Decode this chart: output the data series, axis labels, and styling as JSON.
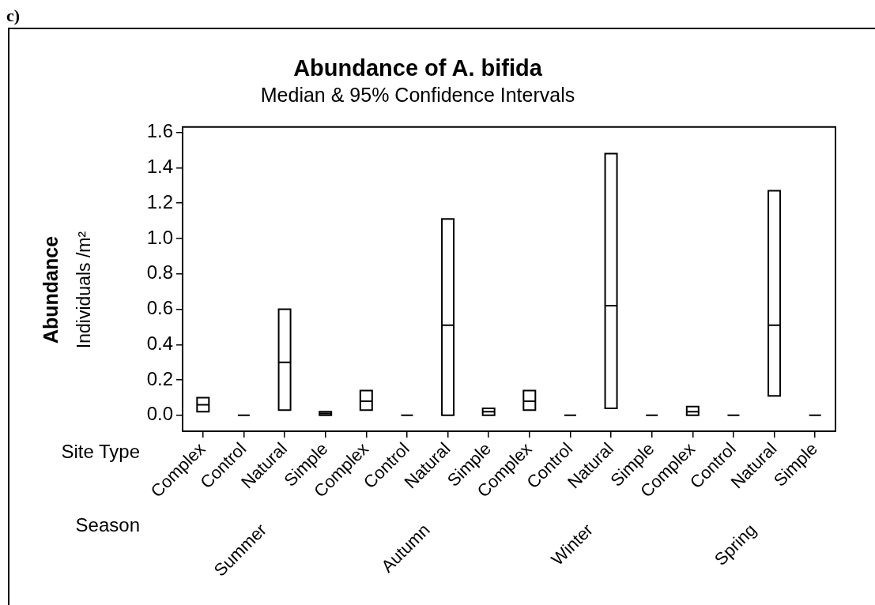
{
  "chart_data": {
    "type": "box",
    "title": "Abundance of A. bifida",
    "subtitle": "Median & 95% Confidence Intervals",
    "ylabel": "Abundance\nIndividuals /m²",
    "categories": [
      "Complex",
      "Control",
      "Natural",
      "Simple",
      "Complex",
      "Control",
      "Natural",
      "Simple",
      "Complex",
      "Control",
      "Natural",
      "Simple",
      "Complex",
      "Control",
      "Natural",
      "Simple"
    ],
    "colors": [
      "#ffffff",
      "#000000",
      "#ffffff",
      "#ffffff",
      "#ffffff",
      "#000000",
      "#ffffff",
      "#ffffff",
      "#ffffff",
      "#000000",
      "#ffffff",
      "#000000",
      "#ffffff",
      "#000000",
      "#ffffff",
      "#000000"
    ],
    "boxes": [
      {
        "low": 0.02,
        "q1": 0.02,
        "median": 0.06,
        "q3": 0.1,
        "high": 0.1
      },
      {
        "low": 0,
        "q1": 0,
        "median": 0,
        "q3": 0,
        "high": 0
      },
      {
        "low": 0.03,
        "q1": 0.03,
        "median": 0.3,
        "q3": 0.6,
        "high": 0.6
      },
      {
        "low": 0,
        "q1": 0,
        "median": 0.01,
        "q3": 0.02,
        "high": 0.02
      },
      {
        "low": 0.03,
        "q1": 0.03,
        "median": 0.08,
        "q3": 0.14,
        "high": 0.14
      },
      {
        "low": 0,
        "q1": 0,
        "median": 0,
        "q3": 0,
        "high": 0
      },
      {
        "low": 0,
        "q1": 0,
        "median": 0.51,
        "q3": 1.11,
        "high": 1.11
      },
      {
        "low": 0,
        "q1": 0,
        "median": 0.02,
        "q3": 0.04,
        "high": 0.04
      },
      {
        "low": 0.03,
        "q1": 0.03,
        "median": 0.08,
        "q3": 0.14,
        "high": 0.14
      },
      {
        "low": 0,
        "q1": 0,
        "median": 0,
        "q3": 0,
        "high": 0
      },
      {
        "low": 0.04,
        "q1": 0.04,
        "median": 0.62,
        "q3": 1.48,
        "high": 1.48
      },
      {
        "low": 0,
        "q1": 0,
        "median": 0,
        "q3": 0,
        "high": 0
      },
      {
        "low": 0,
        "q1": 0,
        "median": 0.02,
        "q3": 0.05,
        "high": 0.05
      },
      {
        "low": 0,
        "q1": 0,
        "median": 0,
        "q3": 0,
        "high": 0
      },
      {
        "low": 0.11,
        "q1": 0.11,
        "median": 0.51,
        "q3": 1.27,
        "high": 1.27
      },
      {
        "low": 0,
        "q1": 0,
        "median": 0,
        "q3": 0,
        "high": 0
      }
    ],
    "ylim": [
      -0.09,
      1.63
    ],
    "yticks": [
      {
        "value": 0,
        "label": "0.0"
      },
      {
        "value": 0.2,
        "label": "0.2"
      },
      {
        "value": 0.4,
        "label": "0.4"
      },
      {
        "value": 0.6,
        "label": "0.6"
      },
      {
        "value": 0.8,
        "label": "0.8"
      },
      {
        "value": 1,
        "label": "1.0"
      },
      {
        "value": 1.2,
        "label": "1.2"
      },
      {
        "value": 1.4,
        "label": "1.4"
      },
      {
        "value": 1.6,
        "label": "1.6"
      }
    ],
    "annotations": [
      "c)",
      "Site Type",
      "Season",
      "Summer",
      "Autumn",
      "Winter",
      "Spring"
    ]
  }
}
